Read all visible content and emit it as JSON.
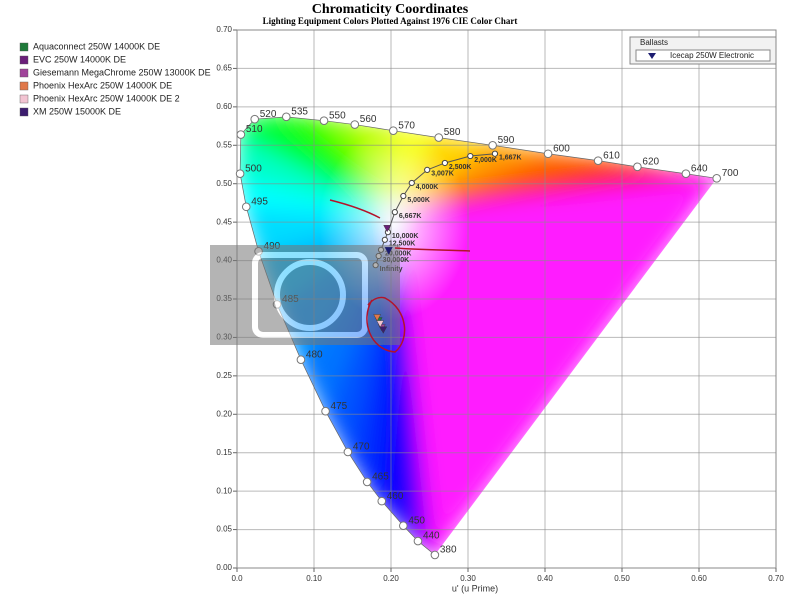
{
  "chart_data": {
    "type": "scatter",
    "title": "Chromaticity Coordinates",
    "subtitle": "Lighting Equipment Colors Plotted Against 1976 CIE Color Chart",
    "x_label": "u' (u Prime)",
    "xlim": [
      0,
      0.7
    ],
    "ylim": [
      0,
      0.7
    ],
    "xticks": [
      {
        "value": 0,
        "label": "0.0"
      },
      {
        "value": 0.1,
        "label": "0.10"
      },
      {
        "value": 0.2,
        "label": "0.20"
      },
      {
        "value": 0.3,
        "label": "0.30"
      },
      {
        "value": 0.4,
        "label": "0.40"
      },
      {
        "value": 0.5,
        "label": "0.50"
      },
      {
        "value": 0.6,
        "label": "0.60"
      },
      {
        "value": 0.7,
        "label": "0.70"
      }
    ],
    "yticks": [
      {
        "value": 0,
        "label": "0.00"
      },
      {
        "value": 0.05,
        "label": "0.05"
      },
      {
        "value": 0.1,
        "label": "0.10"
      },
      {
        "value": 0.15,
        "label": "0.15"
      },
      {
        "value": 0.2,
        "label": "0.20"
      },
      {
        "value": 0.25,
        "label": "0.25"
      },
      {
        "value": 0.3,
        "label": "0.30"
      },
      {
        "value": 0.35,
        "label": "0.35"
      },
      {
        "value": 0.4,
        "label": "0.40"
      },
      {
        "value": 0.45,
        "label": "0.45"
      },
      {
        "value": 0.5,
        "label": "0.50"
      },
      {
        "value": 0.55,
        "label": "0.55"
      },
      {
        "value": 0.6,
        "label": "0.60"
      },
      {
        "value": 0.65,
        "label": "0.65"
      },
      {
        "value": 0.7,
        "label": "0.70"
      }
    ],
    "grid": true,
    "spectral_locus": {
      "labels": [
        "380",
        "440",
        "450",
        "460",
        "465",
        "470",
        "475",
        "480",
        "485",
        "490",
        "495",
        "500",
        "510",
        "520",
        "535",
        "550",
        "560",
        "570",
        "580",
        "590",
        "600",
        "610",
        "620",
        "640",
        "700"
      ],
      "x": [
        0.257,
        0.235,
        0.216,
        0.188,
        0.169,
        0.144,
        0.115,
        0.083,
        0.052,
        0.028,
        0.012,
        0.004,
        0.005,
        0.023,
        0.064,
        0.113,
        0.153,
        0.203,
        0.262,
        0.332,
        0.404,
        0.469,
        0.52,
        0.583,
        0.623
      ],
      "y": [
        0.017,
        0.035,
        0.055,
        0.087,
        0.112,
        0.151,
        0.204,
        0.271,
        0.343,
        0.412,
        0.47,
        0.513,
        0.564,
        0.584,
        0.587,
        0.582,
        0.577,
        0.569,
        0.56,
        0.55,
        0.539,
        0.53,
        0.522,
        0.513,
        0.507
      ]
    },
    "planckian_locus": {
      "labels": [
        "1,667K",
        "2,000K",
        "2,500K",
        "3,007K",
        "4,000K",
        "5,000K",
        "6,667K",
        "10,000K",
        "12,500K",
        "20,000K",
        "30,000K",
        "Infinity"
      ],
      "x": [
        0.335,
        0.303,
        0.27,
        0.247,
        0.227,
        0.216,
        0.205,
        0.196,
        0.192,
        0.187,
        0.184,
        0.18
      ],
      "y": [
        0.539,
        0.536,
        0.527,
        0.518,
        0.501,
        0.484,
        0.463,
        0.437,
        0.427,
        0.414,
        0.406,
        0.394
      ]
    },
    "series": [
      {
        "name": "Aquaconnect  250W 14000K DE",
        "color": "#1f7a3a",
        "x": [
          0.184
        ],
        "y": [
          0.322
        ]
      },
      {
        "name": "EVC  250W 14000K DE",
        "color": "#6b1f7a",
        "x": [
          0.195
        ],
        "y": [
          0.442
        ]
      },
      {
        "name": "Giesemann MegaChrome 250W 13000K DE",
        "color": "#a0449a",
        "x": [
          0.188
        ],
        "y": [
          0.313
        ]
      },
      {
        "name": "Phoenix HexArc 250W 14000K DE",
        "color": "#e0784a",
        "x": [
          0.182
        ],
        "y": [
          0.326
        ]
      },
      {
        "name": "Phoenix HexArc 250W 14000K DE 2",
        "color": "#f2c4d2",
        "x": [
          0.186
        ],
        "y": [
          0.318
        ]
      },
      {
        "name": "XM  250W 15000K DE",
        "color": "#3c1c6e",
        "x": [
          0.19
        ],
        "y": [
          0.31
        ]
      }
    ],
    "ballasts": {
      "title": "Ballasts",
      "series": [
        {
          "name": "Icecap 250W Electronic",
          "color": "#1c1c70",
          "x": [
            0.197
          ],
          "y": [
            0.413
          ]
        }
      ]
    }
  }
}
